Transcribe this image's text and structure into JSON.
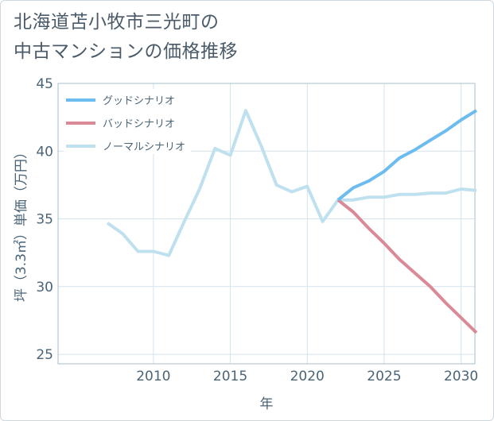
{
  "title_lines": [
    "北海道苫小牧市三光町の",
    "中古マンションの価格推移"
  ],
  "colors": {
    "good": "#6cbcef",
    "bad": "#da8a96",
    "normal": "#bfe0ee",
    "grid": "#d4e4ee",
    "axis": "#a9bccb"
  },
  "chart_data": {
    "type": "line",
    "title": "北海道苫小牧市三光町の中古マンションの価格推移",
    "xlabel": "年",
    "ylabel": "坪（3.3㎡）単価（万円）",
    "xlim": [
      2003.8,
      2030.9
    ],
    "ylim": [
      24.3,
      45.0
    ],
    "xticks": [
      2010,
      2015,
      2020,
      2025,
      2030
    ],
    "yticks": [
      25,
      30,
      35,
      40,
      45
    ],
    "legend_position": "top-left",
    "series": [
      {
        "name": "グッドシナリオ",
        "color_key": "good",
        "x": [
          2022,
          2023,
          2024,
          2025,
          2026,
          2027,
          2028,
          2029,
          2030,
          2031
        ],
        "values": [
          36.4,
          37.3,
          37.8,
          38.5,
          39.5,
          40.1,
          40.8,
          41.5,
          42.3,
          43.0
        ]
      },
      {
        "name": "バッドシナリオ",
        "color_key": "bad",
        "x": [
          2022,
          2023,
          2024,
          2025,
          2026,
          2027,
          2028,
          2029,
          2030,
          2031
        ],
        "values": [
          36.4,
          35.5,
          34.3,
          33.2,
          32.0,
          31.0,
          30.0,
          28.8,
          27.7,
          26.6
        ]
      },
      {
        "name": "ノーマルシナリオ",
        "color_key": "normal",
        "x": [
          2007,
          2008,
          2009,
          2010,
          2011,
          2012,
          2013,
          2014,
          2015,
          2016,
          2017,
          2018,
          2019,
          2020,
          2021,
          2022,
          2023,
          2024,
          2025,
          2026,
          2027,
          2028,
          2029,
          2030,
          2031
        ],
        "values": [
          34.7,
          33.9,
          32.6,
          32.6,
          32.3,
          34.8,
          37.2,
          40.2,
          39.7,
          43.0,
          40.4,
          37.5,
          37.0,
          37.4,
          34.8,
          36.4,
          36.4,
          36.6,
          36.6,
          36.8,
          36.8,
          36.9,
          36.9,
          37.2,
          37.1
        ]
      }
    ]
  }
}
